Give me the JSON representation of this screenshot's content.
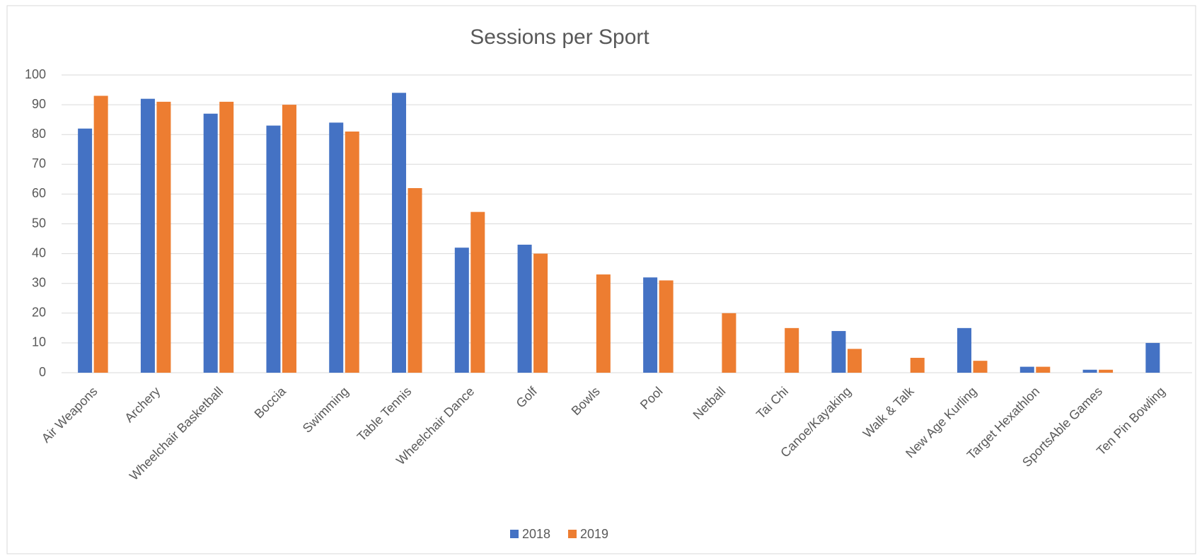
{
  "chart_data": {
    "type": "bar",
    "title": "Sessions per Sport",
    "categories": [
      "Air Weapons",
      "Archery",
      "Wheelchair Basketball",
      "Boccia",
      "Swimming",
      "Table Tennis",
      "Wheelchair Dance",
      "Golf",
      "Bowls",
      "Pool",
      "Netball",
      "Tai Chi",
      "Canoe/Kayaking",
      "Walk & Talk",
      "New Age Kurling",
      "Target Hexathlon",
      "SportsAble Games",
      "Ten Pin Bowling"
    ],
    "series": [
      {
        "name": "2018",
        "color": "#4472c4",
        "values": [
          82,
          92,
          87,
          83,
          84,
          94,
          42,
          43,
          null,
          32,
          null,
          null,
          14,
          null,
          15,
          2,
          1,
          10
        ]
      },
      {
        "name": "2019",
        "color": "#ed7d31",
        "values": [
          93,
          91,
          91,
          90,
          81,
          62,
          54,
          40,
          33,
          31,
          20,
          15,
          8,
          5,
          4,
          2,
          1,
          null
        ]
      }
    ],
    "ylim": [
      0,
      100
    ],
    "yticks": [
      0,
      10,
      20,
      30,
      40,
      50,
      60,
      70,
      80,
      90,
      100
    ],
    "grid": true,
    "legend": "bottom"
  }
}
